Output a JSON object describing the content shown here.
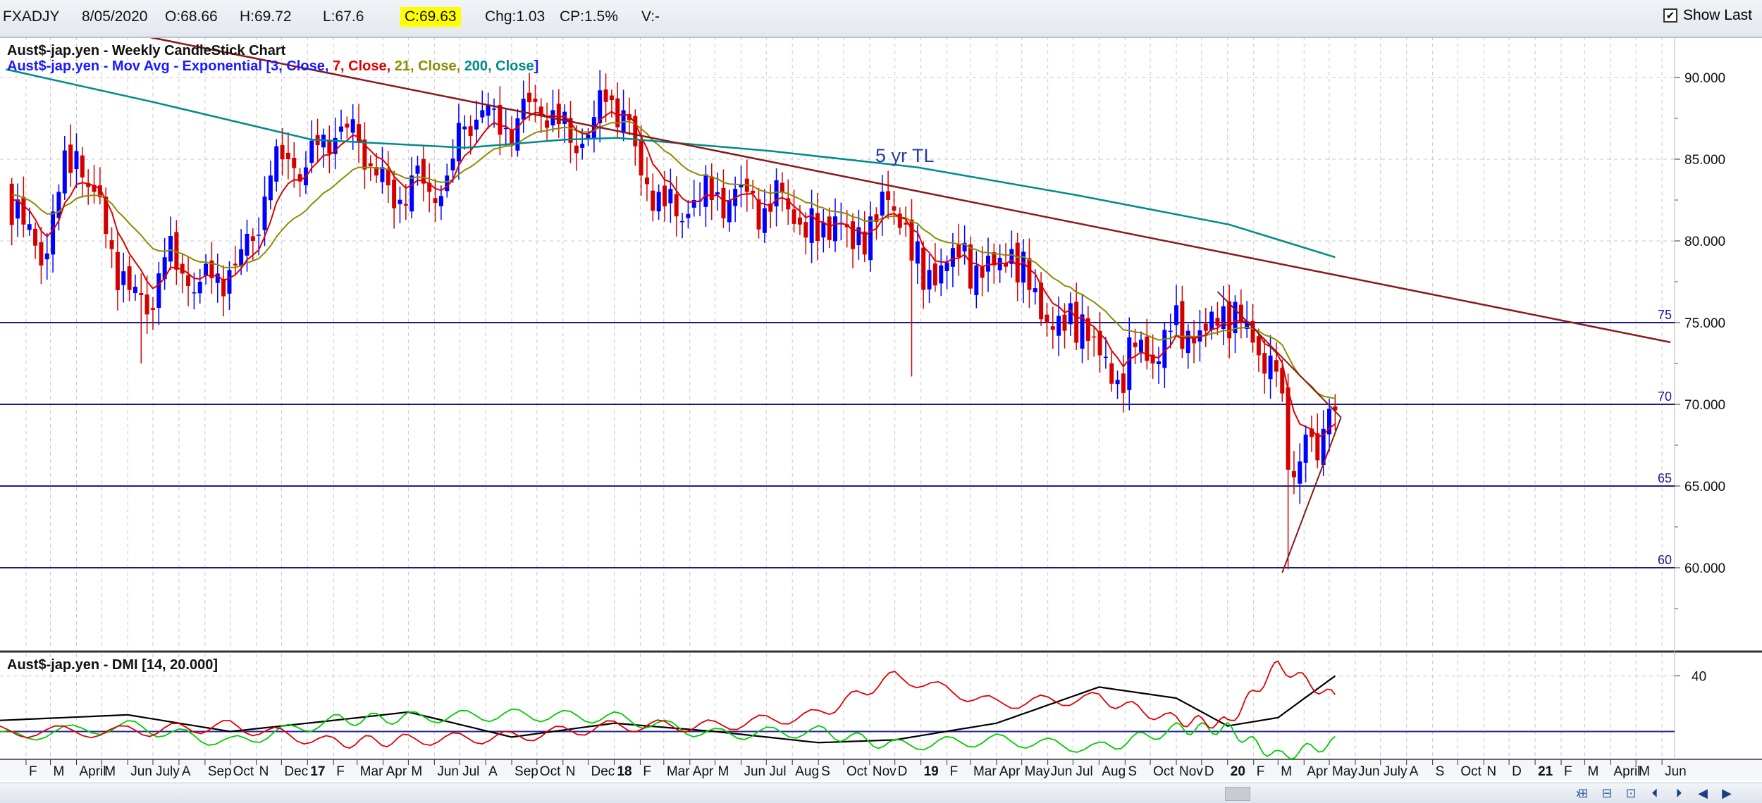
{
  "header": {
    "symbol": "FXADJY",
    "date": "8/05/2020",
    "open": "O:68.66",
    "high": "H:69.72",
    "low": "L:67.6",
    "close": "C:69.63",
    "change": "Chg:1.03",
    "change_pct": "CP:1.5%",
    "volume": "V:-",
    "show_last_label": "Show Last",
    "show_last_checked": true
  },
  "colors": {
    "price_up": "#0000ff",
    "price_down": "#d40000",
    "ema3": "#1a1aff",
    "ema7": "#e00000",
    "ema21": "#8c8c00",
    "ema200": "#008b8b",
    "trendline": "#8b1a1a",
    "support_lines": "#1a1a8c",
    "dmi_plus": "#00cc00",
    "dmi_minus": "#e00000",
    "adx": "#000000",
    "dmi_threshold": "#2a2a9c"
  },
  "chart_data": [
    {
      "type": "line",
      "chart_style": "candlestick",
      "title": "Aust$-jap.yen - Weekly CandleStick Chart",
      "overlay_legend": {
        "prefix": "Aust$-jap.yen - Mov Avg - Exponential [",
        "items": [
          {
            "text": "3, Close, ",
            "color": "#1a1aff"
          },
          {
            "text": "7, Close, ",
            "color": "#e00000"
          },
          {
            "text": "21, Close, ",
            "color": "#8c8c00"
          },
          {
            "text": "200, Close",
            "color": "#008b8b"
          }
        ],
        "suffix": "]"
      },
      "ylim": [
        55,
        92.5
      ],
      "y_ticks": [
        "90.000",
        "85.000",
        "80.000",
        "75.000",
        "70.000",
        "65.000",
        "60.000"
      ],
      "y_tick_values": [
        90,
        85,
        80,
        75,
        70,
        65,
        60
      ],
      "x_start": "2016-01",
      "x_end": "2021-06",
      "series": [
        {
          "name": "Close",
          "style": "candlestick",
          "points": [
            [
              "2016-01-08",
              83.5
            ],
            [
              "2016-01-29",
              81.0
            ],
            [
              "2016-02-19",
              78.5
            ],
            [
              "2016-03-11",
              83.0
            ],
            [
              "2016-04-01",
              85.5
            ],
            [
              "2016-04-22",
              83.0
            ],
            [
              "2016-05-13",
              79.5
            ],
            [
              "2016-06-03",
              77.0
            ],
            [
              "2016-06-24",
              75.5
            ],
            [
              "2016-07-15",
              79.0
            ],
            [
              "2016-08-05",
              78.0
            ],
            [
              "2016-08-26",
              77.5
            ],
            [
              "2016-09-16",
              78.0
            ],
            [
              "2016-10-07",
              78.5
            ],
            [
              "2016-10-28",
              80.0
            ],
            [
              "2016-11-18",
              84.0
            ],
            [
              "2016-12-09",
              85.0
            ],
            [
              "2016-12-30",
              84.5
            ],
            [
              "2017-01-20",
              86.5
            ],
            [
              "2017-02-10",
              87.0
            ],
            [
              "2017-03-03",
              86.0
            ],
            [
              "2017-03-24",
              84.0
            ],
            [
              "2017-04-14",
              82.0
            ],
            [
              "2017-05-05",
              84.0
            ],
            [
              "2017-05-26",
              83.0
            ],
            [
              "2017-06-16",
              84.0
            ],
            [
              "2017-07-07",
              87.0
            ],
            [
              "2017-07-28",
              88.0
            ],
            [
              "2017-08-18",
              86.5
            ],
            [
              "2017-09-08",
              87.5
            ],
            [
              "2017-09-29",
              88.5
            ],
            [
              "2017-10-20",
              88.0
            ],
            [
              "2017-11-10",
              86.0
            ],
            [
              "2017-12-01",
              86.5
            ],
            [
              "2017-12-22",
              88.5
            ],
            [
              "2018-01-12",
              88.0
            ],
            [
              "2018-02-02",
              84.0
            ],
            [
              "2018-02-23",
              83.0
            ],
            [
              "2018-03-16",
              81.5
            ],
            [
              "2018-04-06",
              82.5
            ],
            [
              "2018-04-27",
              82.5
            ],
            [
              "2018-05-18",
              82.5
            ],
            [
              "2018-06-08",
              83.0
            ],
            [
              "2018-06-29",
              82.0
            ],
            [
              "2018-07-20",
              83.0
            ],
            [
              "2018-08-10",
              81.0
            ],
            [
              "2018-08-31",
              80.0
            ],
            [
              "2018-09-21",
              81.5
            ],
            [
              "2018-10-12",
              79.5
            ],
            [
              "2018-11-02",
              81.5
            ],
            [
              "2018-11-23",
              82.5
            ],
            [
              "2018-12-14",
              81.0
            ],
            [
              "2019-01-04",
              77.0
            ],
            [
              "2019-01-25",
              78.5
            ],
            [
              "2019-02-15",
              79.0
            ],
            [
              "2019-03-08",
              78.5
            ],
            [
              "2019-03-29",
              78.5
            ],
            [
              "2019-04-19",
              79.5
            ],
            [
              "2019-05-10",
              77.0
            ],
            [
              "2019-05-31",
              75.0
            ],
            [
              "2019-06-21",
              74.5
            ],
            [
              "2019-07-12",
              75.5
            ],
            [
              "2019-08-02",
              73.0
            ],
            [
              "2019-08-23",
              71.5
            ],
            [
              "2019-09-13",
              73.5
            ],
            [
              "2019-10-04",
              72.5
            ],
            [
              "2019-10-25",
              74.5
            ],
            [
              "2019-11-15",
              74.5
            ],
            [
              "2019-12-06",
              74.5
            ],
            [
              "2019-12-27",
              76.0
            ],
            [
              "2020-01-17",
              75.0
            ],
            [
              "2020-02-07",
              73.0
            ],
            [
              "2020-02-28",
              72.0
            ],
            [
              "2020-03-13",
              66.0
            ],
            [
              "2020-03-27",
              66.5
            ],
            [
              "2020-04-10",
              68.0
            ],
            [
              "2020-04-24",
              68.5
            ],
            [
              "2020-05-08",
              69.63
            ]
          ]
        },
        {
          "name": "EMA 200",
          "points": [
            [
              "2016-01-08",
              90.5
            ],
            [
              "2016-07-01",
              88.5
            ],
            [
              "2017-01-06",
              86.2
            ],
            [
              "2017-07-07",
              85.7
            ],
            [
              "2017-11-03",
              86.2
            ],
            [
              "2018-01-05",
              86.3
            ],
            [
              "2018-07-06",
              85.5
            ],
            [
              "2018-12-28",
              84.5
            ],
            [
              "2019-07-05",
              82.8
            ],
            [
              "2020-01-03",
              81.0
            ],
            [
              "2020-03-06",
              80.0
            ],
            [
              "2020-05-08",
              79.0
            ]
          ]
        }
      ],
      "annotations": [
        {
          "type": "trendline",
          "label": "5 yr TL",
          "from": [
            "2016-06-24",
            92.5
          ],
          "to": [
            "2021-06-11",
            73.8
          ]
        },
        {
          "type": "hline",
          "value": 75,
          "label": "75"
        },
        {
          "type": "hline",
          "value": 70,
          "label": "70"
        },
        {
          "type": "hline",
          "value": 65,
          "label": "65"
        },
        {
          "type": "hline",
          "value": 60,
          "label": "60"
        },
        {
          "type": "triangle_upper",
          "from": [
            "2019-12-20",
            76.9
          ],
          "to": [
            "2020-05-15",
            69.2
          ]
        },
        {
          "type": "triangle_lower",
          "from": [
            "2020-03-06",
            59.7
          ],
          "to": [
            "2020-05-15",
            69.2
          ]
        }
      ],
      "intraweek_extremes": [
        {
          "date": "2016-06-24",
          "low": 72.5
        },
        {
          "date": "2018-12-28",
          "low": 71.7
        },
        {
          "date": "2020-03-20",
          "low": 59.9
        }
      ]
    },
    {
      "type": "line",
      "title": "Aust$-jap.yen - DMI [14, 20.000]",
      "ylim": [
        10,
        48
      ],
      "y_ticks": [
        "40"
      ],
      "y_tick_values": [
        40
      ],
      "threshold": 20,
      "series": [
        {
          "name": "ADX",
          "points": [
            [
              "2016-01-01",
              24
            ],
            [
              "2016-06-01",
              26
            ],
            [
              "2016-10-01",
              20
            ],
            [
              "2017-02-01",
              24
            ],
            [
              "2017-05-01",
              27
            ],
            [
              "2017-09-01",
              18
            ],
            [
              "2018-01-01",
              23
            ],
            [
              "2018-05-01",
              20
            ],
            [
              "2018-09-01",
              16
            ],
            [
              "2018-12-01",
              17
            ],
            [
              "2019-04-01",
              23
            ],
            [
              "2019-08-01",
              36
            ],
            [
              "2019-11-01",
              32
            ],
            [
              "2020-01-01",
              22
            ],
            [
              "2020-03-01",
              25
            ],
            [
              "2020-05-08",
              40
            ]
          ]
        },
        {
          "name": "+DI",
          "points": [
            [
              "2016-01-01",
              18
            ],
            [
              "2016-06-01",
              22
            ],
            [
              "2016-10-01",
              16
            ],
            [
              "2017-02-01",
              24
            ],
            [
              "2017-05-01",
              25
            ],
            [
              "2017-09-01",
              26
            ],
            [
              "2018-01-01",
              25
            ],
            [
              "2018-05-01",
              19
            ],
            [
              "2018-09-01",
              20
            ],
            [
              "2018-12-01",
              15
            ],
            [
              "2019-04-01",
              17
            ],
            [
              "2019-08-01",
              14
            ],
            [
              "2019-11-01",
              21
            ],
            [
              "2020-01-01",
              21
            ],
            [
              "2020-03-01",
              11
            ],
            [
              "2020-05-08",
              16
            ]
          ]
        },
        {
          "name": "-DI",
          "points": [
            [
              "2016-01-01",
              20
            ],
            [
              "2016-06-01",
              20
            ],
            [
              "2016-10-01",
              22
            ],
            [
              "2017-02-01",
              16
            ],
            [
              "2017-05-01",
              17
            ],
            [
              "2017-09-01",
              18
            ],
            [
              "2018-01-01",
              22
            ],
            [
              "2018-05-01",
              22
            ],
            [
              "2018-09-01",
              26
            ],
            [
              "2018-12-01",
              40
            ],
            [
              "2019-04-01",
              30
            ],
            [
              "2019-08-01",
              32
            ],
            [
              "2019-11-01",
              24
            ],
            [
              "2020-01-01",
              23
            ],
            [
              "2020-03-01",
              44
            ],
            [
              "2020-05-08",
              32
            ]
          ]
        }
      ]
    }
  ],
  "x_axis": {
    "labels": [
      {
        "date": "2016-02-01",
        "text": "F"
      },
      {
        "date": "2016-03-01",
        "text": "M"
      },
      {
        "date": "2016-04-01",
        "text": "April"
      },
      {
        "date": "2016-05-01",
        "text": "M"
      },
      {
        "date": "2016-06-01",
        "text": "Jun"
      },
      {
        "date": "2016-07-01",
        "text": "July"
      },
      {
        "date": "2016-08-01",
        "text": "A"
      },
      {
        "date": "2016-09-01",
        "text": "Sep"
      },
      {
        "date": "2016-10-01",
        "text": "Oct"
      },
      {
        "date": "2016-11-01",
        "text": "N"
      },
      {
        "date": "2016-12-01",
        "text": "Dec"
      },
      {
        "date": "2017-01-01",
        "text": "17",
        "bold": true
      },
      {
        "date": "2017-02-01",
        "text": "F"
      },
      {
        "date": "2017-03-01",
        "text": "Mar"
      },
      {
        "date": "2017-04-01",
        "text": "Apr"
      },
      {
        "date": "2017-05-01",
        "text": "M"
      },
      {
        "date": "2017-06-01",
        "text": "Jun"
      },
      {
        "date": "2017-07-01",
        "text": "Jul"
      },
      {
        "date": "2017-08-01",
        "text": "A"
      },
      {
        "date": "2017-09-01",
        "text": "Sep"
      },
      {
        "date": "2017-10-01",
        "text": "Oct"
      },
      {
        "date": "2017-11-01",
        "text": "N"
      },
      {
        "date": "2017-12-01",
        "text": "Dec"
      },
      {
        "date": "2018-01-01",
        "text": "18",
        "bold": true
      },
      {
        "date": "2018-02-01",
        "text": "F"
      },
      {
        "date": "2018-03-01",
        "text": "Mar"
      },
      {
        "date": "2018-04-01",
        "text": "Apr"
      },
      {
        "date": "2018-05-01",
        "text": "M"
      },
      {
        "date": "2018-06-01",
        "text": "Jun"
      },
      {
        "date": "2018-07-01",
        "text": "Jul"
      },
      {
        "date": "2018-08-01",
        "text": "Aug"
      },
      {
        "date": "2018-09-01",
        "text": "S"
      },
      {
        "date": "2018-10-01",
        "text": "Oct"
      },
      {
        "date": "2018-11-01",
        "text": "Nov"
      },
      {
        "date": "2018-12-01",
        "text": "D"
      },
      {
        "date": "2019-01-01",
        "text": "19",
        "bold": true
      },
      {
        "date": "2019-02-01",
        "text": "F"
      },
      {
        "date": "2019-03-01",
        "text": "Mar"
      },
      {
        "date": "2019-04-01",
        "text": "Apr"
      },
      {
        "date": "2019-05-01",
        "text": "May"
      },
      {
        "date": "2019-06-01",
        "text": "Jun"
      },
      {
        "date": "2019-07-01",
        "text": "Jul"
      },
      {
        "date": "2019-08-01",
        "text": "Aug"
      },
      {
        "date": "2019-09-01",
        "text": "S"
      },
      {
        "date": "2019-10-01",
        "text": "Oct"
      },
      {
        "date": "2019-11-01",
        "text": "Nov"
      },
      {
        "date": "2019-12-01",
        "text": "D"
      },
      {
        "date": "2020-01-01",
        "text": "20",
        "bold": true
      },
      {
        "date": "2020-02-01",
        "text": "F"
      },
      {
        "date": "2020-03-01",
        "text": "M"
      },
      {
        "date": "2020-04-01",
        "text": "Apr"
      },
      {
        "date": "2020-05-01",
        "text": "May"
      },
      {
        "date": "2020-06-01",
        "text": "Jun"
      },
      {
        "date": "2020-07-01",
        "text": "July"
      },
      {
        "date": "2020-08-01",
        "text": "A"
      },
      {
        "date": "2020-09-01",
        "text": "S"
      },
      {
        "date": "2020-10-01",
        "text": "Oct"
      },
      {
        "date": "2020-11-01",
        "text": "N"
      },
      {
        "date": "2020-12-01",
        "text": "D"
      },
      {
        "date": "2021-01-01",
        "text": "21",
        "bold": true
      },
      {
        "date": "2021-02-01",
        "text": "F"
      },
      {
        "date": "2021-03-01",
        "text": "M"
      },
      {
        "date": "2021-04-01",
        "text": "April"
      },
      {
        "date": "2021-05-01",
        "text": "M"
      },
      {
        "date": "2021-06-01",
        "text": "Jun"
      }
    ]
  },
  "nav_icons": [
    "zoom-in-icon",
    "zoom-out-icon",
    "zoom-reset-icon",
    "scroll-left-end-icon",
    "scroll-right-end-icon",
    "scroll-left-icon",
    "scroll-right-icon"
  ]
}
